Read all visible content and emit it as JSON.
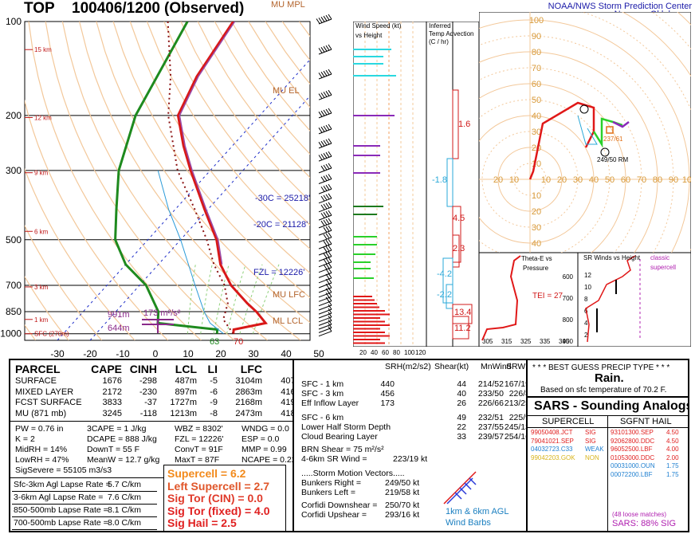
{
  "header": {
    "station": "TOP",
    "time": "100406/1200",
    "obs": "(Observed)",
    "agency1": "NOAA/NWS Storm Prediction Center",
    "agency2": "Norman, Oklahoma"
  },
  "skewt": {
    "pressure_ticks": [
      "100",
      "200",
      "300",
      "500",
      "700",
      "850",
      "1000"
    ],
    "temp_ticks": [
      "-30",
      "-20",
      "-10",
      "0",
      "10",
      "20",
      "30",
      "40",
      "50"
    ],
    "height_labels": [
      "15 km",
      "12 km",
      "9 km",
      "6 km",
      "3 km",
      "1 km",
      "SFC (270m)"
    ],
    "levels": {
      "mu_mpl": "MU MPL",
      "mu_el": "MU EL",
      "mu_lfc": "MU LFC",
      "mu_lcl": "ML LCL"
    },
    "annotations": {
      "m30c": "-30C = 25218'",
      "m20c": "-20C = 21128'",
      "fzl": "FZL = 12226'",
      "h991": "991m",
      "h644": "644m",
      "srh": "173 m²/s²",
      "t63": "63",
      "t70": "70"
    }
  },
  "windspeed": {
    "title1": "Wind Speed (kt)",
    "title2": "vs Height",
    "ticks": [
      "20",
      "40",
      "60",
      "80",
      "100",
      "120"
    ]
  },
  "tempadv": {
    "title1": "Inferred",
    "title2": "Temp Advection",
    "title3": "(C / hr)",
    "values": [
      "1.6",
      "-1.8",
      "4.5",
      "2.3",
      "-4.2",
      "-2.2",
      "13.4",
      "11.2"
    ]
  },
  "hodograph": {
    "axis_labels": [
      "20",
      "10",
      "10",
      "20",
      "30",
      "40",
      "50",
      "60",
      "70",
      "80",
      "90",
      "100"
    ],
    "y_labels": [
      "100",
      "90",
      "80",
      "70",
      "60",
      "50",
      "40",
      "30",
      "20",
      "10",
      "10",
      "20",
      "30",
      "40"
    ],
    "storm_label": "237/61",
    "rm_label": "249/50 RM"
  },
  "thetae": {
    "title1": "Theta-E vs",
    "title2": "Pressure",
    "tei": "TEI = 27",
    "p_ticks": [
      "600",
      "700",
      "800",
      "900"
    ],
    "x_ticks": [
      "305",
      "315",
      "325",
      "335",
      "345"
    ]
  },
  "srwind": {
    "title": "SR Winds vs Height",
    "label1": "classic",
    "label2": "supercell",
    "y_ticks": [
      "12",
      "10",
      "8",
      "6",
      "4",
      "2"
    ]
  },
  "parcel": {
    "headers": [
      "PARCEL",
      "CAPE",
      "CINH",
      "LCL",
      "LI",
      "LFC",
      "EL"
    ],
    "rows": [
      [
        "SURFACE",
        "1676",
        "-298",
        "487m",
        "-5",
        "3104m",
        "40726'"
      ],
      [
        "MIXED LAYER",
        "2172",
        "-230",
        "897m",
        "-6",
        "2863m",
        "41679'"
      ],
      [
        "FCST SURFACE",
        "3833",
        "-37",
        "1727m",
        "-9",
        "2168m",
        "41993'"
      ],
      [
        "MU   (871 mb)",
        "3245",
        "-118",
        "1213m",
        "-8",
        "2473m",
        "41874'"
      ]
    ]
  },
  "indices": {
    "col1": [
      "PW = 0.76 in",
      "K = 2",
      "MidRH = 14%",
      "LowRH = 47%",
      "SigSevere = 55105 m3/s3"
    ],
    "col2": [
      "3CAPE = 1 J/kg",
      "DCAPE = 888 J/kg",
      "DownT = 55 F",
      "MeanW = 12.7 g/kg"
    ],
    "col3": [
      "WBZ = 8302'",
      "FZL = 12226'",
      "ConvT = 91F",
      "MaxT = 87F"
    ],
    "col4": [
      "WNDG = 0.0",
      "ESP = 0.0",
      "MMP = 0.99",
      "NCAPE = 0.22"
    ]
  },
  "lapse": [
    {
      "label": "Sfc-3km Agl Lapse Rate =",
      "value": "5.7 C/km"
    },
    {
      "label": "3-6km Agl Lapse Rate =",
      "value": "7.6 C/km"
    },
    {
      "label": "850-500mb Lapse Rate =",
      "value": "8.1 C/km"
    },
    {
      "label": "700-500mb Lapse Rate =",
      "value": "8.0 C/km"
    }
  ],
  "composite": [
    {
      "label": "Supercell = 6.2",
      "color": "#f28a1c"
    },
    {
      "label": "Left Supercell = 2.7",
      "color": "#e0562a"
    },
    {
      "label": "Sig Tor (CIN) = 0.0",
      "color": "#e03a2a"
    },
    {
      "label": "Sig Tor (fixed) = 4.0",
      "color": "#e02020"
    },
    {
      "label": "Sig Hail = 2.5",
      "color": "#e02020"
    }
  ],
  "kinematic": {
    "headers": [
      "SRH(m2/s2)",
      "Shear(kt)",
      "MnWind",
      "SRW"
    ],
    "rows": [
      [
        "SFC - 1 km",
        "440",
        "44",
        "214/52",
        "167/19"
      ],
      [
        "SFC - 3 km",
        "456",
        "40",
        "233/50",
        "226/8"
      ],
      [
        "Eff Inflow Layer",
        "173",
        "26",
        "226/66",
        "213/25"
      ],
      [
        "SFC - 6 km",
        "",
        "49",
        "232/51",
        "225/9"
      ],
      [
        "Lower Half Storm Depth",
        "",
        "22",
        "237/55",
        "245/13"
      ],
      [
        "Cloud Bearing Layer",
        "",
        "33",
        "239/57",
        "254/16"
      ]
    ],
    "brn": "BRN Shear =  75 m²/s²",
    "srwind_label": "4-6km SR Wind =",
    "srwind_value": "223/19 kt",
    "smv_title": ".....Storm Motion Vectors.....",
    "bunkers_right_label": "Bunkers Right =",
    "bunkers_right_value": "249/50 kt",
    "bunkers_left_label": "Bunkers Left =",
    "bunkers_left_value": "219/58 kt",
    "corfidi_down_label": "Corfidi Downshear =",
    "corfidi_down_value": "250/70 kt",
    "corfidi_up_label": "Corfidi Upshear =",
    "corfidi_up_value": "293/16 kt",
    "barb_label1": "1km & 6km AGL",
    "barb_label2": "Wind Barbs"
  },
  "precip": {
    "title": "* * * BEST GUESS PRECIP TYPE * * *",
    "type": "Rain.",
    "basis": "Based on sfc temperature of 70.2 F."
  },
  "sars": {
    "title": "SARS - Sounding Analogs",
    "sc_header": "SUPERCELL",
    "hail_header": "SGFNT HAIL",
    "supercell": [
      {
        "id": "99050408.JCT",
        "cat": "SIG",
        "color": "#e02020"
      },
      {
        "id": "79041021.SEP",
        "cat": "SIG",
        "color": "#e02020"
      },
      {
        "id": "04032723.C33",
        "cat": "WEAK",
        "color": "#1e7fd0"
      },
      {
        "id": "99042203.GOK",
        "cat": "NON",
        "color": "#d8b41c"
      }
    ],
    "hail": [
      {
        "id": "93101300.SEP",
        "val": "4.50",
        "color": "#e02020"
      },
      {
        "id": "92062800.DDC",
        "val": "4.50",
        "color": "#e02020"
      },
      {
        "id": "96052500.LBF",
        "val": "4.00",
        "color": "#e02020"
      },
      {
        "id": "01053000.DDC",
        "val": "2.00",
        "color": "#e02020"
      },
      {
        "id": "00031000.OUN",
        "val": "1.75",
        "color": "#1e7fd0"
      },
      {
        "id": "00072200.LBF",
        "val": "1.75",
        "color": "#1e7fd0"
      }
    ],
    "loose": "(48 loose matches)",
    "sig": "SARS:  88% SIG"
  },
  "chart_data": {
    "type": "line",
    "title": "TOP 100406/1200 (Observed)",
    "temperature_profile": [
      {
        "p": 1000,
        "t": 22
      },
      {
        "p": 970,
        "t": 21
      },
      {
        "p": 925,
        "t": 29
      },
      {
        "p": 850,
        "t": 23
      },
      {
        "p": 800,
        "t": 18
      },
      {
        "p": 700,
        "t": 8
      },
      {
        "p": 600,
        "t": -1
      },
      {
        "p": 500,
        "t": -9
      },
      {
        "p": 400,
        "t": -21
      },
      {
        "p": 300,
        "t": -36
      },
      {
        "p": 250,
        "t": -45
      },
      {
        "p": 200,
        "t": -55
      },
      {
        "p": 150,
        "t": -60
      },
      {
        "p": 100,
        "t": -64
      }
    ],
    "dewpoint_profile": [
      {
        "p": 1000,
        "t": 17
      },
      {
        "p": 970,
        "t": 16
      },
      {
        "p": 925,
        "t": -4
      },
      {
        "p": 850,
        "t": -7
      },
      {
        "p": 700,
        "t": -18
      },
      {
        "p": 600,
        "t": -30
      },
      {
        "p": 500,
        "t": -40
      },
      {
        "p": 400,
        "t": -48
      },
      {
        "p": 300,
        "t": -58
      },
      {
        "p": 200,
        "t": -68
      },
      {
        "p": 100,
        "t": -78
      }
    ],
    "pressure_axis_mb": [
      100,
      200,
      300,
      500,
      700,
      850,
      1000
    ],
    "temperature_axis_c": [
      -30,
      50
    ]
  }
}
